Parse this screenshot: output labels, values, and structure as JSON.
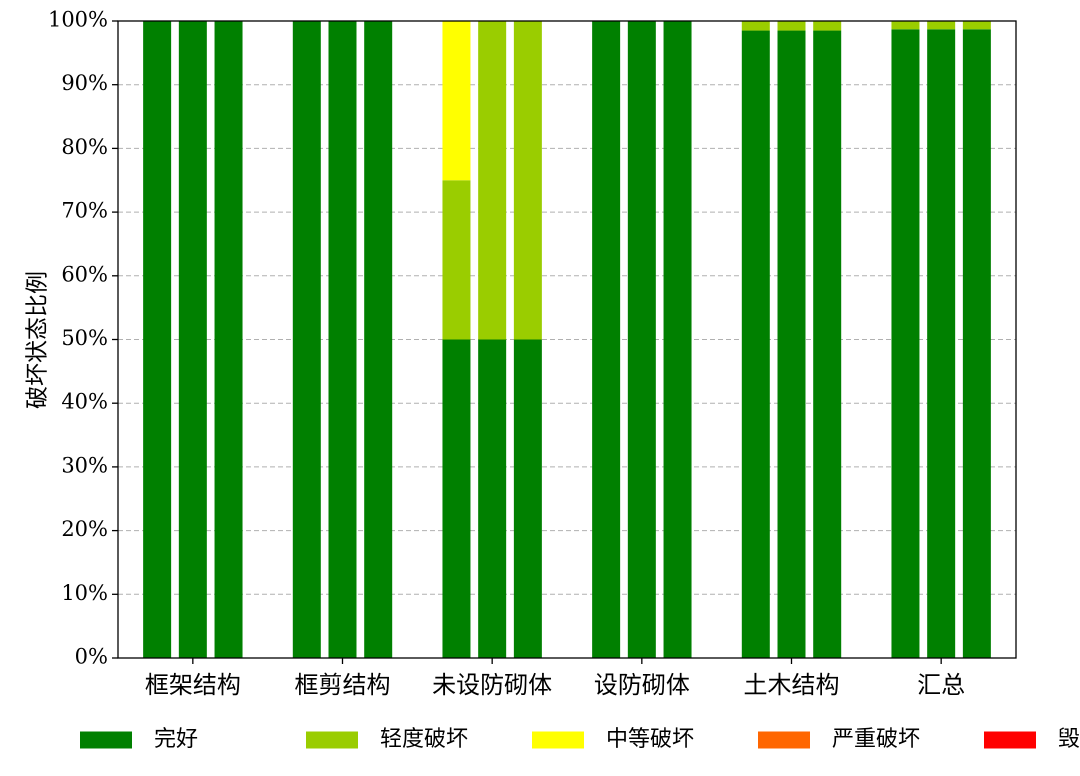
{
  "chart_data": {
    "type": "bar",
    "stacked": true,
    "title": "",
    "xlabel": "",
    "ylabel": "破坏状态比例",
    "ylim": [
      0,
      100
    ],
    "y_ticks": [
      "0%",
      "10%",
      "20%",
      "30%",
      "40%",
      "50%",
      "60%",
      "70%",
      "80%",
      "90%",
      "100%"
    ],
    "grid": "horizontal dashed",
    "legend_position": "bottom",
    "categories": [
      "框架结构",
      "框剪结构",
      "未设防砌体",
      "设防砌体",
      "土木结构",
      "汇总"
    ],
    "bars_per_category": 3,
    "series": [
      {
        "name": "完好",
        "color": "#008000",
        "values": [
          [
            100,
            100,
            100
          ],
          [
            100,
            100,
            100
          ],
          [
            50,
            50,
            50
          ],
          [
            100,
            100,
            100
          ],
          [
            98.5,
            98.5,
            98.5
          ],
          [
            98.7,
            98.7,
            98.7
          ]
        ]
      },
      {
        "name": "轻度破坏",
        "color": "#9ACD00",
        "values": [
          [
            0,
            0,
            0
          ],
          [
            0,
            0,
            0
          ],
          [
            25,
            50,
            50
          ],
          [
            0,
            0,
            0
          ],
          [
            1.5,
            1.5,
            1.5
          ],
          [
            1.3,
            1.3,
            1.3
          ]
        ]
      },
      {
        "name": "中等破坏",
        "color": "#FFFF00",
        "values": [
          [
            0,
            0,
            0
          ],
          [
            0,
            0,
            0
          ],
          [
            25,
            0,
            0
          ],
          [
            0,
            0,
            0
          ],
          [
            0,
            0,
            0
          ],
          [
            0,
            0,
            0
          ]
        ]
      },
      {
        "name": "严重破坏",
        "color": "#FF6600",
        "values": [
          [
            0,
            0,
            0
          ],
          [
            0,
            0,
            0
          ],
          [
            0,
            0,
            0
          ],
          [
            0,
            0,
            0
          ],
          [
            0,
            0,
            0
          ],
          [
            0,
            0,
            0
          ]
        ]
      },
      {
        "name": "毁坏",
        "color": "#FF0000",
        "values": [
          [
            0,
            0,
            0
          ],
          [
            0,
            0,
            0
          ],
          [
            0,
            0,
            0
          ],
          [
            0,
            0,
            0
          ],
          [
            0,
            0,
            0
          ],
          [
            0,
            0,
            0
          ]
        ]
      }
    ]
  }
}
